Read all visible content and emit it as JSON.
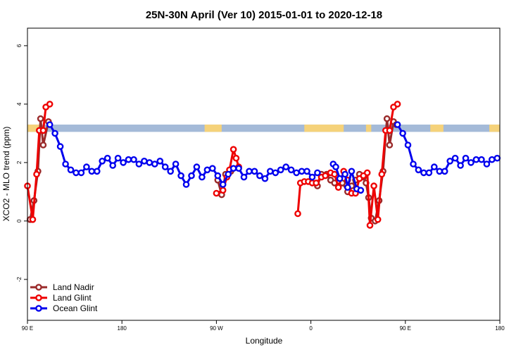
{
  "chart_data": {
    "type": "line",
    "title": "25N-30N April (Ver 10)   2015-01-01 to 2020-12-18",
    "xlabel": "Longitude",
    "ylabel": "XCO2 - MLO trend (ppm)",
    "xlim": [
      -90,
      270
    ],
    "ylim": [
      -3.4,
      6.6
    ],
    "x_ticks": [
      {
        "value": -90,
        "label": "90 E"
      },
      {
        "value": -18,
        "label": "180"
      },
      {
        "value": 54,
        "label": "90 W"
      },
      {
        "value": 126,
        "label": "0"
      },
      {
        "value": 198,
        "label": "90 E"
      },
      {
        "value": 270,
        "label": "180"
      }
    ],
    "y_ticks": [
      {
        "value": -2,
        "label": "-2"
      },
      {
        "value": 0,
        "label": "0"
      },
      {
        "value": 2,
        "label": "2"
      },
      {
        "value": 4,
        "label": "4"
      },
      {
        "value": 6,
        "label": "6"
      }
    ],
    "grid": false,
    "legend_position": "bottom-left",
    "surface_band": {
      "y_range": [
        3.05,
        3.3
      ],
      "ocean_color": "#a4bad8",
      "land_color": "#f5d27a",
      "land_segments": [
        [
          -90,
          -80
        ],
        [
          45,
          58
        ],
        [
          121,
          151
        ],
        [
          168,
          172
        ],
        [
          217,
          227
        ],
        [
          262,
          270
        ]
      ]
    },
    "series": [
      {
        "name": "Land Nadir",
        "color": "#9a2a2a",
        "segments": [
          [
            [
              -88,
              0.05
            ],
            [
              -85,
              0.7
            ],
            [
              -82,
              1.7
            ],
            [
              -80,
              3.5
            ],
            [
              -78,
              2.6
            ],
            [
              -74,
              3.4
            ]
          ],
          [
            [
              55,
              1.4
            ],
            [
              58,
              0.9
            ],
            [
              61,
              1.6
            ],
            [
              65,
              1.7
            ]
          ],
          [
            [
              131,
              1.2
            ],
            [
              134,
              1.6
            ],
            [
              138,
              1.6
            ],
            [
              141,
              1.4
            ],
            [
              144,
              1.3
            ],
            [
              147,
              1.2
            ],
            [
              150,
              1.3
            ],
            [
              154,
              1.0
            ],
            [
              157,
              1.2
            ],
            [
              160,
              1.4
            ],
            [
              163,
              1.6
            ],
            [
              166,
              1.5
            ],
            [
              168,
              1.3
            ],
            [
              170,
              0.8
            ],
            [
              172,
              0.1
            ]
          ],
          [
            [
              175,
              0.0
            ],
            [
              178,
              0.7
            ],
            [
              181,
              1.7
            ],
            [
              184,
              3.5
            ],
            [
              186,
              2.6
            ],
            [
              189,
              3.4
            ],
            [
              191,
              3.3
            ]
          ]
        ]
      },
      {
        "name": "Land Glint",
        "color": "#ee0000",
        "segments": [
          [
            [
              -90,
              1.2
            ],
            [
              -86,
              0.05
            ],
            [
              -83,
              1.6
            ],
            [
              -81,
              3.1
            ],
            [
              -78,
              3.1
            ],
            [
              -76,
              3.9
            ],
            [
              -73,
              4.0
            ]
          ],
          [
            [
              54,
              0.95
            ],
            [
              59,
              1.05
            ],
            [
              62,
              1.5
            ],
            [
              64,
              1.75
            ],
            [
              67,
              2.45
            ],
            [
              69,
              2.15
            ],
            [
              71,
              1.85
            ]
          ],
          [
            [
              116,
              0.25
            ],
            [
              118,
              1.3
            ],
            [
              121,
              1.35
            ],
            [
              124,
              1.35
            ],
            [
              127,
              1.3
            ],
            [
              130,
              1.3
            ],
            [
              134,
              1.5
            ],
            [
              137,
              1.55
            ],
            [
              141,
              1.65
            ],
            [
              144,
              1.6
            ],
            [
              147,
              1.15
            ],
            [
              151,
              1.7
            ],
            [
              154,
              1.4
            ],
            [
              157,
              0.95
            ],
            [
              160,
              0.95
            ],
            [
              163,
              1.45
            ],
            [
              166,
              1.55
            ],
            [
              169,
              1.65
            ],
            [
              171,
              -0.15
            ],
            [
              174,
              1.2
            ],
            [
              177,
              0.05
            ],
            [
              180,
              1.6
            ],
            [
              183,
              3.1
            ],
            [
              186,
              3.1
            ],
            [
              189,
              3.9
            ],
            [
              192,
              4.0
            ]
          ]
        ]
      },
      {
        "name": "Ocean Glint",
        "color": "#0000ee",
        "segments": [
          [
            [
              -73,
              3.3
            ],
            [
              -69,
              3.0
            ],
            [
              -65,
              2.55
            ],
            [
              -61,
              1.95
            ],
            [
              -57,
              1.75
            ],
            [
              -53,
              1.65
            ],
            [
              -49,
              1.65
            ],
            [
              -45,
              1.85
            ],
            [
              -41,
              1.7
            ],
            [
              -37,
              1.7
            ],
            [
              -33,
              2.05
            ],
            [
              -29,
              2.15
            ],
            [
              -25,
              1.9
            ],
            [
              -21,
              2.15
            ],
            [
              -17,
              2.0
            ],
            [
              -13,
              2.1
            ],
            [
              -9,
              2.1
            ],
            [
              -5,
              1.95
            ],
            [
              -1,
              2.05
            ],
            [
              3,
              2.0
            ],
            [
              7,
              1.95
            ],
            [
              11,
              2.05
            ],
            [
              15,
              1.85
            ],
            [
              19,
              1.7
            ],
            [
              23,
              1.95
            ],
            [
              27,
              1.55
            ],
            [
              31,
              1.25
            ],
            [
              35,
              1.55
            ],
            [
              39,
              1.85
            ],
            [
              43,
              1.5
            ],
            [
              47,
              1.75
            ],
            [
              51,
              1.8
            ],
            [
              55,
              1.55
            ],
            [
              59,
              1.25
            ],
            [
              63,
              1.6
            ],
            [
              67,
              1.8
            ],
            [
              71,
              1.8
            ],
            [
              75,
              1.5
            ],
            [
              79,
              1.7
            ],
            [
              83,
              1.7
            ],
            [
              87,
              1.55
            ],
            [
              91,
              1.45
            ],
            [
              95,
              1.7
            ],
            [
              99,
              1.65
            ],
            [
              103,
              1.75
            ],
            [
              107,
              1.85
            ],
            [
              111,
              1.75
            ],
            [
              115,
              1.65
            ],
            [
              119,
              1.7
            ],
            [
              123,
              1.7
            ],
            [
              127,
              1.5
            ],
            [
              131,
              1.65
            ]
          ],
          [
            [
              143,
              1.95
            ],
            [
              145,
              1.85
            ],
            [
              148,
              1.45
            ],
            [
              152,
              1.6
            ],
            [
              154,
              1.15
            ],
            [
              157,
              1.7
            ],
            [
              161,
              1.1
            ],
            [
              164,
              1.05
            ]
          ],
          [
            [
              192,
              3.3
            ],
            [
              196,
              3.0
            ],
            [
              200,
              2.6
            ],
            [
              204,
              1.95
            ],
            [
              208,
              1.75
            ],
            [
              212,
              1.65
            ],
            [
              216,
              1.65
            ],
            [
              220,
              1.85
            ],
            [
              224,
              1.7
            ],
            [
              228,
              1.7
            ],
            [
              232,
              2.05
            ],
            [
              236,
              2.15
            ],
            [
              240,
              1.9
            ],
            [
              244,
              2.15
            ],
            [
              248,
              2.0
            ],
            [
              252,
              2.1
            ],
            [
              256,
              2.1
            ],
            [
              260,
              1.95
            ],
            [
              264,
              2.1
            ],
            [
              268,
              2.15
            ]
          ]
        ]
      }
    ]
  }
}
